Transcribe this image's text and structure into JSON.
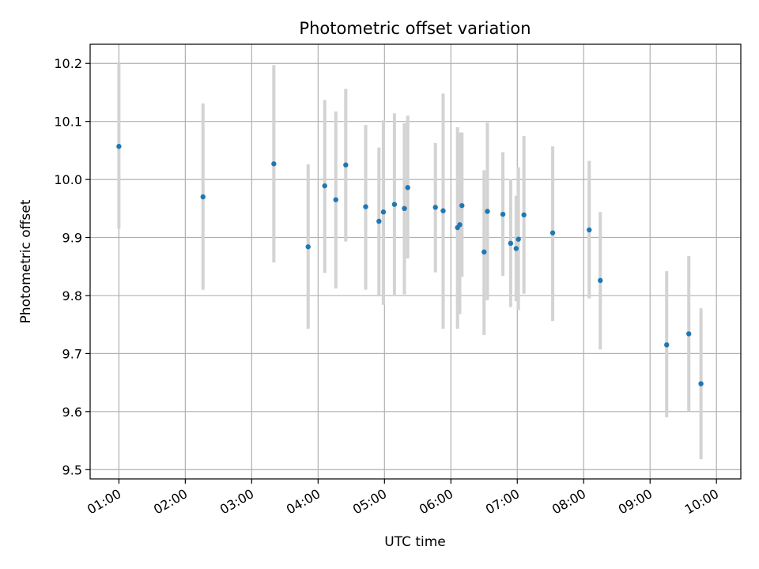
{
  "chart_data": {
    "type": "scatter",
    "title": "Photometric offset variation",
    "xlabel": "UTC time",
    "ylabel": "Photometric offset",
    "grid": true,
    "xlim": [
      "00:34",
      "10:22"
    ],
    "ylim": [
      9.484,
      10.233
    ],
    "xticks": [
      "01:00",
      "02:00",
      "03:00",
      "04:00",
      "05:00",
      "06:00",
      "07:00",
      "08:00",
      "09:00",
      "10:00"
    ],
    "yticks": [
      9.5,
      9.6,
      9.7,
      9.8,
      9.9,
      10.0,
      10.1,
      10.2
    ],
    "ytick_labels": [
      "9.5",
      "9.6",
      "9.7",
      "9.8",
      "9.9",
      "10.0",
      "10.1",
      "10.2"
    ],
    "marker_color": "#1f77b4",
    "errorbar_color": "#d3d3d3",
    "points": [
      {
        "x": "01:00",
        "y": 10.057,
        "err_low": 9.915,
        "err_high": 10.2
      },
      {
        "x": "02:16",
        "y": 9.97,
        "err_low": 9.81,
        "err_high": 10.131
      },
      {
        "x": "03:20",
        "y": 10.027,
        "err_low": 9.857,
        "err_high": 10.197
      },
      {
        "x": "03:51",
        "y": 9.884,
        "err_low": 9.743,
        "err_high": 10.026
      },
      {
        "x": "04:06",
        "y": 9.989,
        "err_low": 9.839,
        "err_high": 10.137
      },
      {
        "x": "04:16",
        "y": 9.965,
        "err_low": 9.812,
        "err_high": 10.117
      },
      {
        "x": "04:25",
        "y": 10.025,
        "err_low": 9.893,
        "err_high": 10.156
      },
      {
        "x": "04:43",
        "y": 9.953,
        "err_low": 9.81,
        "err_high": 10.094
      },
      {
        "x": "04:55",
        "y": 9.928,
        "err_low": 9.801,
        "err_high": 10.055
      },
      {
        "x": "04:59",
        "y": 9.944,
        "err_low": 9.784,
        "err_high": 10.102
      },
      {
        "x": "05:09",
        "y": 9.957,
        "err_low": 9.8,
        "err_high": 10.114
      },
      {
        "x": "05:18",
        "y": 9.95,
        "err_low": 9.802,
        "err_high": 10.097
      },
      {
        "x": "05:21",
        "y": 9.986,
        "err_low": 9.864,
        "err_high": 10.11
      },
      {
        "x": "05:46",
        "y": 9.952,
        "err_low": 9.84,
        "err_high": 10.063
      },
      {
        "x": "05:53",
        "y": 9.946,
        "err_low": 9.743,
        "err_high": 10.148
      },
      {
        "x": "06:06",
        "y": 9.917,
        "err_low": 9.743,
        "err_high": 10.09
      },
      {
        "x": "06:08",
        "y": 9.922,
        "err_low": 9.768,
        "err_high": 10.081
      },
      {
        "x": "06:10",
        "y": 9.955,
        "err_low": 9.832,
        "err_high": 10.081
      },
      {
        "x": "06:30",
        "y": 9.875,
        "err_low": 9.732,
        "err_high": 10.016
      },
      {
        "x": "06:33",
        "y": 9.945,
        "err_low": 9.792,
        "err_high": 10.098
      },
      {
        "x": "06:47",
        "y": 9.94,
        "err_low": 9.834,
        "err_high": 10.047
      },
      {
        "x": "06:54",
        "y": 9.89,
        "err_low": 9.78,
        "err_high": 10.001
      },
      {
        "x": "06:59",
        "y": 9.881,
        "err_low": 9.79,
        "err_high": 9.972
      },
      {
        "x": "07:01",
        "y": 9.897,
        "err_low": 9.775,
        "err_high": 10.021
      },
      {
        "x": "07:06",
        "y": 9.939,
        "err_low": 9.803,
        "err_high": 10.075
      },
      {
        "x": "07:32",
        "y": 9.908,
        "err_low": 9.756,
        "err_high": 10.057
      },
      {
        "x": "08:05",
        "y": 9.913,
        "err_low": 9.795,
        "err_high": 10.032
      },
      {
        "x": "08:15",
        "y": 9.826,
        "err_low": 9.707,
        "err_high": 9.944
      },
      {
        "x": "09:15",
        "y": 9.715,
        "err_low": 9.59,
        "err_high": 9.842
      },
      {
        "x": "09:35",
        "y": 9.734,
        "err_low": 9.601,
        "err_high": 9.868
      },
      {
        "x": "09:46",
        "y": 9.648,
        "err_low": 9.518,
        "err_high": 9.778
      }
    ]
  }
}
